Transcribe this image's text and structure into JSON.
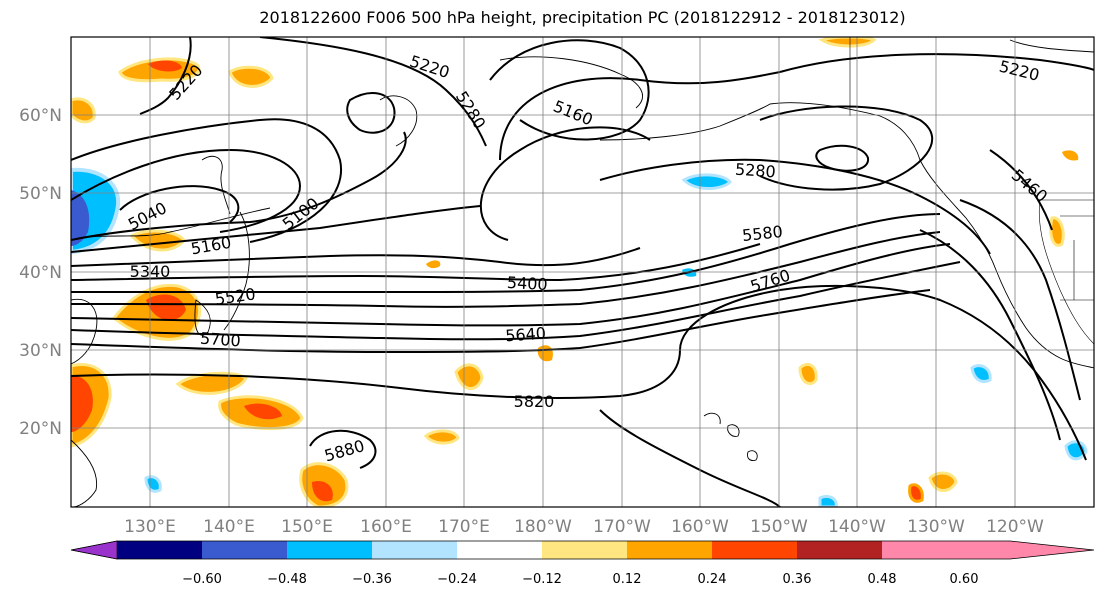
{
  "title": "2018122600 F006 500 hPa height, precipitation PC (2018122912 - 2018123012)",
  "map": {
    "lon_ticks": [
      "130°E",
      "140°E",
      "150°E",
      "160°E",
      "170°E",
      "180°W",
      "170°W",
      "160°W",
      "150°W",
      "140°W",
      "130°W",
      "120°W"
    ],
    "lat_ticks": [
      "60°N",
      "50°N",
      "40°N",
      "30°N",
      "20°N"
    ],
    "grid": true,
    "contour_labels": [
      "5220",
      "5220",
      "5280",
      "5160",
      "5220",
      "5280",
      "5460",
      "5040",
      "5100",
      "5160",
      "5340",
      "5400",
      "5580",
      "5520",
      "5760",
      "5640",
      "5700",
      "5820",
      "5880"
    ]
  },
  "colorbar": {
    "ticks": [
      "−0.60",
      "−0.48",
      "−0.36",
      "−0.24",
      "−0.12",
      "0.12",
      "0.24",
      "0.36",
      "0.48",
      "0.60"
    ],
    "colors": [
      "#9933cc",
      "#000080",
      "#3a5bd0",
      "#00bfff",
      "#b2e4ff",
      "#ffffff",
      "#ffe680",
      "#ffa500",
      "#ff4500",
      "#b22222",
      "#ff88aa"
    ]
  }
}
